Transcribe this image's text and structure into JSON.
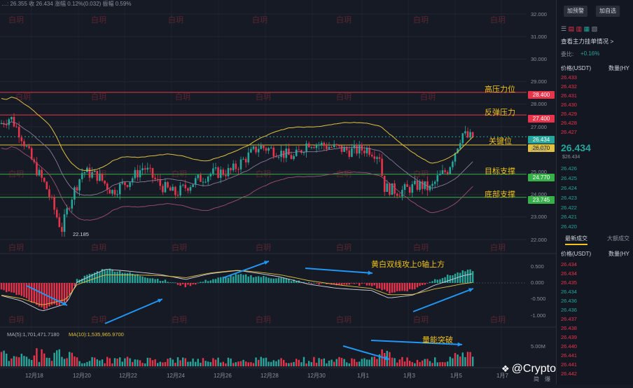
{
  "header": {
    "info": "…: 26.355  收 26.434  涨幅 0.12%(0.032)  振幅 0.59%"
  },
  "price_axis": [
    "32.000",
    "31.000",
    "30.000",
    "29.000",
    "28.000",
    "27.000",
    "26.000",
    "25.000",
    "24.000",
    "23.000",
    "22.000"
  ],
  "macd_axis": [
    "0.500",
    "0.000",
    "-0.500",
    "-1.000"
  ],
  "volume_axis": [
    "5.00M"
  ],
  "date_axis": [
    "12月18",
    "12月20",
    "12月22",
    "12月24",
    "12月26",
    "12月28",
    "12月30",
    "1月1",
    "1月3",
    "1月5",
    "1月7",
    "简",
    "爆"
  ],
  "levels": [
    {
      "name": "高压力位",
      "price": "28.400",
      "color": "#e8344a"
    },
    {
      "name": "反弹压力",
      "price": "27.400",
      "color": "#e8344a"
    },
    {
      "name": "关键位",
      "price": "26.070",
      "color": "#e0c040"
    },
    {
      "name": "目标支撑",
      "price": "24.770",
      "color": "#38b04a"
    },
    {
      "name": "底部支撑",
      "price": "23.745",
      "color": "#38b04a"
    }
  ],
  "current_price": "26.434",
  "low_label": "22.185",
  "annotations": {
    "macd": "黄白双线攻上0轴上方",
    "volume": "量能突破"
  },
  "volume_ma": {
    "ma5": "MA(5):1,701,471.7180",
    "ma10": "MA(10):1,535,965.9700"
  },
  "watermark": "白玥",
  "brand": "@Crypto白玥",
  "sidebar": {
    "buttons": [
      "加预警",
      "加自选"
    ],
    "main_link": "查看主力挂单情况 >",
    "ratio_label": "委比:",
    "ratio_value": "+0.16%",
    "book_headers": {
      "price": "价格(USDT)",
      "qty": "数量(HY"
    },
    "asks": [
      "26.433",
      "26.432",
      "26.431",
      "26.430",
      "26.429",
      "26.428",
      "26.427"
    ],
    "last_price": "26.434",
    "last_sub": "$26.434",
    "bids": [
      "26.426",
      "26.425",
      "26.424",
      "26.423",
      "26.422",
      "26.421",
      "26.420"
    ],
    "tabs": [
      "最新成交",
      "大额成交"
    ],
    "trades": [
      {
        "p": "26.434",
        "c": "#e8344a"
      },
      {
        "p": "26.434",
        "c": "#e8344a"
      },
      {
        "p": "26.435",
        "c": "#e8344a"
      },
      {
        "p": "26.434",
        "c": "#26a69a"
      },
      {
        "p": "26.436",
        "c": "#26a69a"
      },
      {
        "p": "26.436",
        "c": "#26a69a"
      },
      {
        "p": "26.437",
        "c": "#e8344a"
      },
      {
        "p": "26.438",
        "c": "#e8344a"
      },
      {
        "p": "26.439",
        "c": "#e8344a"
      },
      {
        "p": "26.440",
        "c": "#e8344a"
      },
      {
        "p": "26.441",
        "c": "#e8344a"
      },
      {
        "p": "26.441",
        "c": "#e8344a"
      },
      {
        "p": "26.442",
        "c": "#e8344a"
      }
    ]
  },
  "colors": {
    "up": "#26a69a",
    "down": "#e8344a",
    "bg": "#161a25"
  }
}
